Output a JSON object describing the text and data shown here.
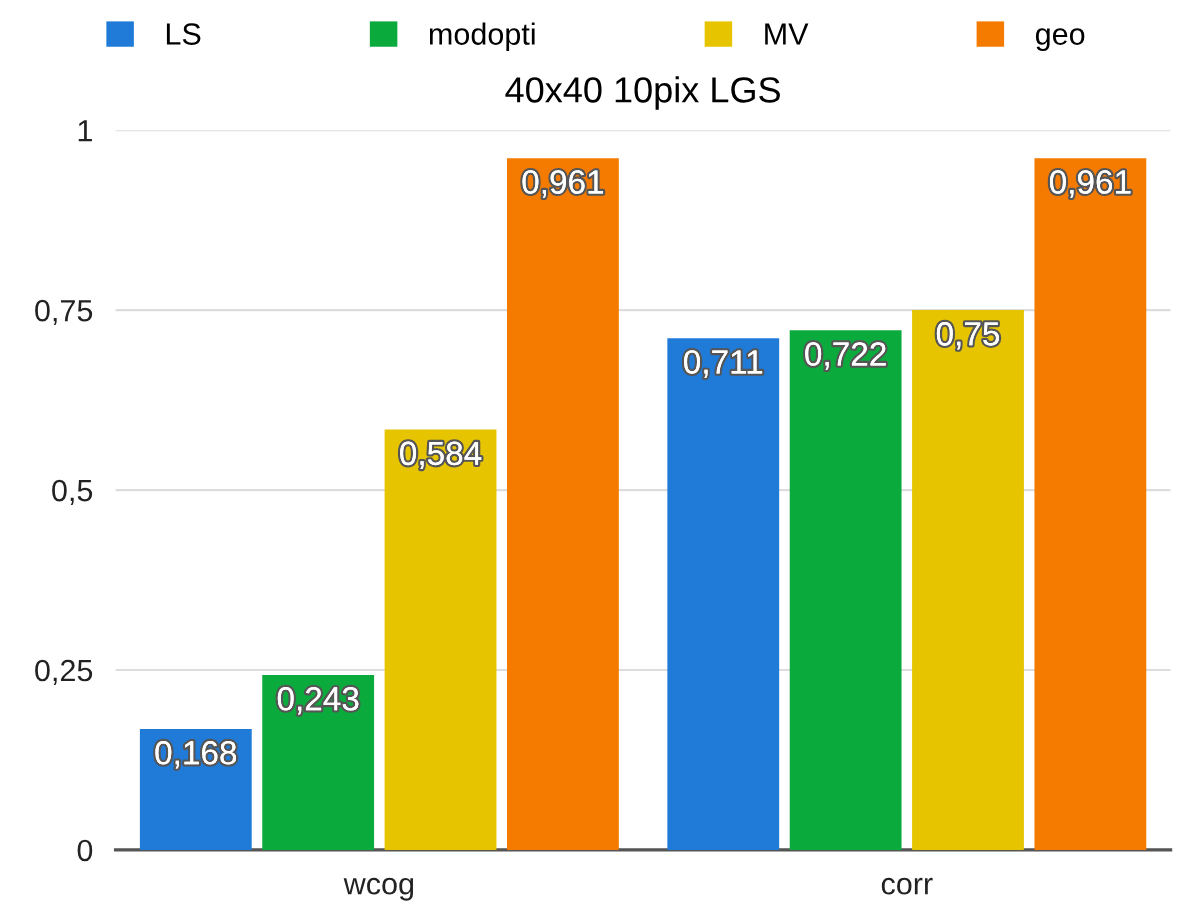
{
  "chart_data": {
    "type": "bar",
    "title": "40x40 10pix LGS",
    "categories": [
      "wcog",
      "corr"
    ],
    "series": [
      {
        "name": "LS",
        "color": "#1f7ad8",
        "values": [
          0.168,
          0.711
        ],
        "value_labels": [
          "0,168",
          "0,711"
        ]
      },
      {
        "name": "modopti",
        "color": "#0aaa3c",
        "values": [
          0.243,
          0.722
        ],
        "value_labels": [
          "0,243",
          "0,722"
        ]
      },
      {
        "name": "MV",
        "color": "#e6c400",
        "values": [
          0.584,
          0.75
        ],
        "value_labels": [
          "0,584",
          "0,75"
        ]
      },
      {
        "name": "geo",
        "color": "#f57a00",
        "values": [
          0.961,
          0.961
        ],
        "value_labels": [
          "0,961",
          "0,961"
        ]
      }
    ],
    "ylim": [
      0,
      1
    ],
    "yticks": [
      0,
      {
        "value": 0.25,
        "label": "0,25"
      },
      {
        "value": 0.5,
        "label": "0,5"
      },
      {
        "value": 0.75,
        "label": "0,75"
      },
      1
    ],
    "grid": "y",
    "legend": "top"
  }
}
